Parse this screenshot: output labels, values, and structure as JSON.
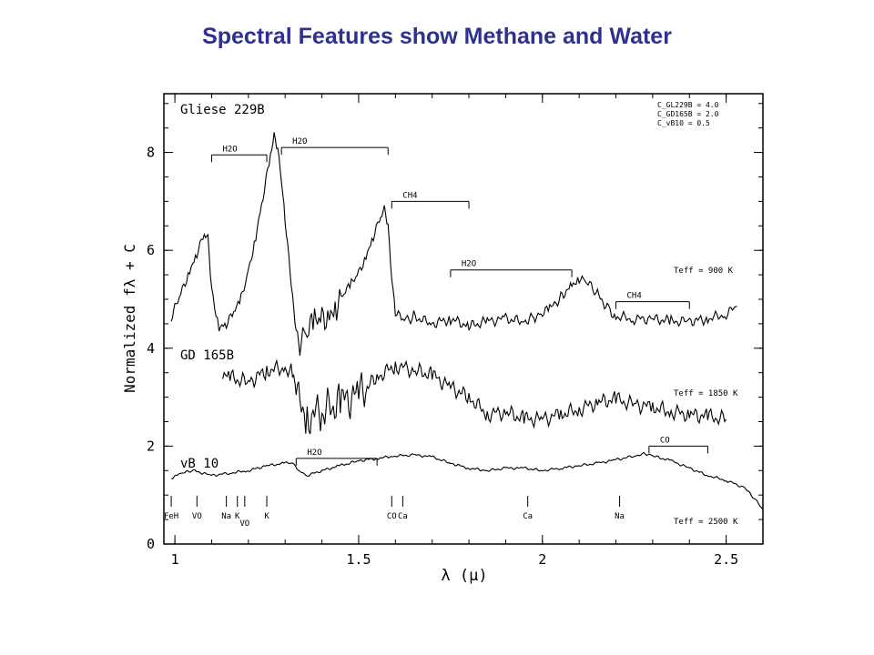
{
  "slide": {
    "title": "Spectral Features show Methane and Water"
  },
  "chart_data": {
    "type": "line",
    "xlabel": "λ (μ)",
    "ylabel": "Normalized fλ + C",
    "xlim": [
      0.97,
      2.6
    ],
    "ylim": [
      0,
      9.2
    ],
    "x_ticks": [
      "1",
      "1.5",
      "2",
      "2.5"
    ],
    "x_tick_values": [
      1,
      1.5,
      2,
      2.5
    ],
    "y_ticks": [
      "0",
      "2",
      "4",
      "6",
      "8"
    ],
    "y_tick_values": [
      0,
      2,
      4,
      6,
      8
    ],
    "offsets_note_lines": [
      "C_GL229B = 4.0",
      "C_GD165B = 2.0",
      "C_vB10 = 0.5"
    ],
    "series": [
      {
        "name": "Gliese 229B",
        "teff_label": "Teff = 900 K",
        "x": [
          0.99,
          1.0,
          1.02,
          1.04,
          1.06,
          1.08,
          1.09,
          1.1,
          1.12,
          1.14,
          1.16,
          1.18,
          1.2,
          1.22,
          1.24,
          1.26,
          1.27,
          1.28,
          1.29,
          1.3,
          1.31,
          1.32,
          1.33,
          1.34,
          1.36,
          1.38,
          1.4,
          1.42,
          1.44,
          1.46,
          1.48,
          1.5,
          1.52,
          1.54,
          1.56,
          1.57,
          1.58,
          1.59,
          1.6,
          1.62,
          1.65,
          1.7,
          1.75,
          1.8,
          1.85,
          1.9,
          1.95,
          1.98,
          2.0,
          2.02,
          2.05,
          2.08,
          2.1,
          2.12,
          2.15,
          2.18,
          2.2,
          2.25,
          2.3,
          2.35,
          2.4,
          2.45,
          2.5,
          2.53
        ],
        "y": [
          4.55,
          4.8,
          5.2,
          5.6,
          5.95,
          6.3,
          6.2,
          5.2,
          4.45,
          4.5,
          4.7,
          5.0,
          5.6,
          6.3,
          7.1,
          7.9,
          8.3,
          8.1,
          7.5,
          6.6,
          5.8,
          5.0,
          4.4,
          4.2,
          4.3,
          4.5,
          4.6,
          4.75,
          4.9,
          5.1,
          5.3,
          5.55,
          5.9,
          6.3,
          6.65,
          6.8,
          6.5,
          5.5,
          4.75,
          4.55,
          4.65,
          4.5,
          4.6,
          4.45,
          4.55,
          4.6,
          4.55,
          4.65,
          4.7,
          4.8,
          5.05,
          5.3,
          5.45,
          5.35,
          5.1,
          4.8,
          4.65,
          4.6,
          4.6,
          4.55,
          4.55,
          4.6,
          4.7,
          4.85
        ]
      },
      {
        "name": "GD 165B",
        "teff_label": "Teff = 1850 K",
        "x": [
          1.13,
          1.15,
          1.2,
          1.25,
          1.3,
          1.32,
          1.33,
          1.34,
          1.36,
          1.4,
          1.45,
          1.5,
          1.55,
          1.6,
          1.65,
          1.7,
          1.75,
          1.8,
          1.85,
          1.9,
          1.95,
          2.0,
          2.05,
          2.1,
          2.15,
          2.2,
          2.25,
          2.3,
          2.35,
          2.4,
          2.45,
          2.5
        ],
        "y": [
          3.45,
          3.4,
          3.3,
          3.55,
          3.6,
          3.5,
          3.1,
          2.8,
          2.6,
          2.7,
          2.9,
          3.05,
          3.4,
          3.65,
          3.55,
          3.45,
          3.2,
          3.0,
          2.65,
          2.7,
          2.55,
          2.55,
          2.65,
          2.75,
          2.9,
          2.95,
          2.85,
          2.8,
          2.7,
          2.65,
          2.6,
          2.55
        ]
      },
      {
        "name": "vB 10",
        "teff_label": "Teff = 2500 K",
        "x": [
          0.99,
          1.02,
          1.05,
          1.1,
          1.15,
          1.2,
          1.25,
          1.3,
          1.32,
          1.34,
          1.36,
          1.4,
          1.45,
          1.5,
          1.55,
          1.6,
          1.65,
          1.7,
          1.75,
          1.8,
          1.85,
          1.9,
          1.95,
          2.0,
          2.05,
          2.1,
          2.15,
          2.2,
          2.25,
          2.28,
          2.3,
          2.35,
          2.4,
          2.45,
          2.5,
          2.55,
          2.58,
          2.6
        ],
        "y": [
          1.35,
          1.45,
          1.5,
          1.4,
          1.45,
          1.5,
          1.6,
          1.65,
          1.65,
          1.5,
          1.4,
          1.5,
          1.6,
          1.7,
          1.75,
          1.8,
          1.82,
          1.78,
          1.65,
          1.55,
          1.5,
          1.55,
          1.55,
          1.5,
          1.55,
          1.6,
          1.65,
          1.72,
          1.8,
          1.85,
          1.8,
          1.7,
          1.55,
          1.4,
          1.3,
          1.15,
          0.9,
          0.7
        ]
      }
    ],
    "absorption_bands": [
      {
        "label": "H2O",
        "x0": 1.1,
        "x1": 1.25,
        "y": 7.95
      },
      {
        "label": "H2O",
        "x0": 1.29,
        "x1": 1.58,
        "y": 8.1
      },
      {
        "label": "CH4",
        "x0": 1.59,
        "x1": 1.8,
        "y": 7.0
      },
      {
        "label": "H2O",
        "x0": 1.75,
        "x1": 2.08,
        "y": 5.6
      },
      {
        "label": "CH4",
        "x0": 2.2,
        "x1": 2.4,
        "y": 4.95
      },
      {
        "label": "H2O",
        "x0": 1.33,
        "x1": 1.55,
        "y": 1.75
      },
      {
        "label": "CO",
        "x0": 2.29,
        "x1": 2.45,
        "y": 2.0
      }
    ],
    "line_markers": [
      {
        "label": "FeH",
        "x": 0.99
      },
      {
        "label": "VO",
        "x": 1.06
      },
      {
        "label": "Na",
        "x": 1.14
      },
      {
        "label": "K",
        "x": 1.17
      },
      {
        "label": "VO",
        "x": 1.19
      },
      {
        "label": "K",
        "x": 1.25
      },
      {
        "label": "CO",
        "x": 1.59
      },
      {
        "label": "Ca",
        "x": 1.62
      },
      {
        "label": "Ca",
        "x": 1.96
      },
      {
        "label": "Na",
        "x": 2.21
      }
    ]
  }
}
